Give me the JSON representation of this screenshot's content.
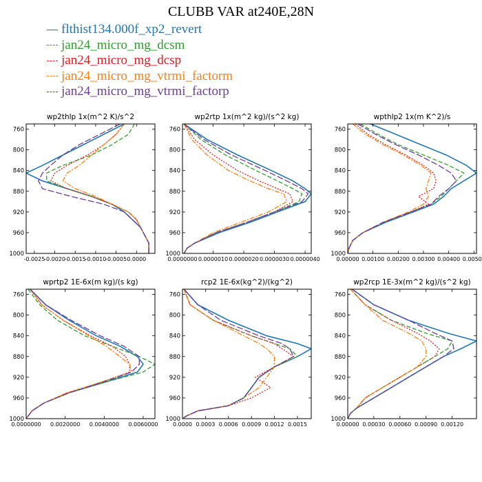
{
  "title": "CLUBB VAR at240E,28N",
  "legend": [
    {
      "label": "flthist134.000f_xp2_revert",
      "color": "#1f77b4",
      "dash": "solid"
    },
    {
      "label": "jan24_micro_mg_dcsm",
      "color": "#2ca02c",
      "dash": "dash"
    },
    {
      "label": "jan24_micro_mg_dcsp",
      "color": "#e41a1c",
      "dash": "dot"
    },
    {
      "label": "jan24_micro_mg_vtrmi_factorm",
      "color": "#ff7f0e",
      "dash": "dashdot"
    },
    {
      "label": "jan24_micro_mg_vtrmi_factorp",
      "color": "#6a3d9a",
      "dash": "longdash"
    }
  ],
  "chart_data": [
    {
      "type": "line",
      "title": "wp2thlp  1x(m^2 K)/s^2",
      "ylim": [
        1000,
        750
      ],
      "xlim": [
        -0.0027,
        0.00045
      ],
      "y_ticks": [
        760,
        800,
        840,
        880,
        920,
        960,
        1000
      ],
      "x_ticks": [
        "-0.0025",
        "-0.0020",
        "-0.0015",
        "-0.0010",
        "-0.0005",
        "0.0000"
      ],
      "x_tick_values": [
        -0.0025,
        -0.002,
        -0.0015,
        -0.001,
        -0.0005,
        0.0
      ],
      "y": [
        750,
        770,
        790,
        810,
        830,
        845,
        860,
        875,
        890,
        905,
        920,
        935,
        950,
        965,
        980,
        990,
        1000
      ],
      "series": [
        {
          "values": [
            -0.0003,
            -0.0008,
            -0.0013,
            -0.0018,
            -0.0023,
            -0.0027,
            -0.0023,
            -0.0017,
            -0.0011,
            -0.0006,
            -0.0003,
            -0.0001,
            0.0001,
            0.0002,
            0.0003,
            0.0003,
            0.0003
          ]
        },
        {
          "values": [
            -5e-05,
            -0.0002,
            -0.0006,
            -0.0011,
            -0.0018,
            -0.0022,
            -0.0022,
            -0.0017,
            -0.0011,
            -0.0006,
            -0.0002,
            0.0,
            0.0001,
            0.0002,
            0.0003,
            0.0003,
            0.0003
          ]
        },
        {
          "values": [
            -0.0003,
            -0.0005,
            -0.0008,
            -0.0012,
            -0.0017,
            -0.002,
            -0.0021,
            -0.0017,
            -0.0011,
            -0.0006,
            -0.0002,
            0.0,
            0.0001,
            0.0002,
            0.0003,
            0.0003,
            0.0003
          ]
        },
        {
          "values": [
            -0.0003,
            -0.0005,
            -0.0008,
            -0.0011,
            -0.0014,
            -0.0017,
            -0.0018,
            -0.0015,
            -0.001,
            -0.0006,
            -0.0002,
            0.0,
            0.0001,
            0.0002,
            0.0003,
            0.0003,
            0.0003
          ]
        },
        {
          "values": [
            -0.0004,
            -0.0009,
            -0.0014,
            -0.0018,
            -0.0021,
            -0.0023,
            -0.0024,
            -0.0023,
            -0.0016,
            -0.0008,
            -0.0003,
            -0.0001,
            0.0001,
            0.0002,
            0.0003,
            0.0003,
            0.0003
          ]
        }
      ]
    },
    {
      "type": "line",
      "title": "wp2rtp  1x(m^2 kg)/(s^2 kg)",
      "ylim": [
        1000,
        750
      ],
      "xlim": [
        0.0,
        4.2e-06
      ],
      "y_ticks": [
        760,
        800,
        840,
        880,
        920,
        960,
        1000
      ],
      "x_ticks": [
        "0.0000000",
        "0.0000010",
        "0.0000020",
        "0.0000030",
        "0.0000040"
      ],
      "x_tick_values": [
        0.0,
        1e-06,
        2e-06,
        3e-06,
        4e-06
      ],
      "y": [
        750,
        780,
        810,
        840,
        860,
        875,
        885,
        900,
        920,
        940,
        960,
        980,
        990,
        1000
      ],
      "series": [
        {
          "values": [
            5e-08,
            8e-07,
            1.8e-06,
            2.9e-06,
            3.6e-06,
            4e-06,
            4.2e-06,
            4e-06,
            3.1e-06,
            2.2e-06,
            1.2e-06,
            4e-07,
            1.5e-07,
            5e-08
          ]
        },
        {
          "values": [
            5e-08,
            6e-07,
            1.4e-06,
            2.4e-06,
            3.1e-06,
            3.6e-06,
            3.9e-06,
            3.8e-06,
            3e-06,
            2.1e-06,
            1.1e-06,
            4e-07,
            1.5e-07,
            5e-08
          ]
        },
        {
          "values": [
            5e-08,
            4e-07,
            1e-06,
            1.8e-06,
            2.5e-06,
            3.1e-06,
            3.5e-06,
            3.6e-06,
            3e-06,
            2.1e-06,
            1.1e-06,
            4e-07,
            1.5e-07,
            5e-08
          ]
        },
        {
          "values": [
            5e-08,
            3e-07,
            8e-07,
            1.5e-06,
            2.2e-06,
            2.8e-06,
            3.3e-06,
            3.4e-06,
            2.8e-06,
            1.9e-06,
            1e-06,
            4e-07,
            1.5e-07,
            5e-08
          ]
        },
        {
          "values": [
            5e-08,
            7e-07,
            1.6e-06,
            2.7e-06,
            3.4e-06,
            3.9e-06,
            4.1e-06,
            3.9e-06,
            3e-06,
            2.1e-06,
            1.1e-06,
            4e-07,
            1.5e-07,
            5e-08
          ]
        }
      ]
    },
    {
      "type": "line",
      "title": "wpthlp2  1x(m K^2)/s",
      "ylim": [
        1000,
        750
      ],
      "xlim": [
        0.0,
        0.0051
      ],
      "y_ticks": [
        760,
        800,
        840,
        880,
        920,
        960,
        1000
      ],
      "x_ticks": [
        "0.00000",
        "0.00100",
        "0.00200",
        "0.00300",
        "0.00400",
        "0.00500"
      ],
      "x_tick_values": [
        0.0,
        0.001,
        0.002,
        0.003,
        0.004,
        0.005
      ],
      "y": [
        750,
        770,
        790,
        810,
        830,
        845,
        860,
        875,
        890,
        905,
        920,
        940,
        960,
        975,
        990,
        1000
      ],
      "series": [
        {
          "values": [
            0.0009,
            0.0019,
            0.0029,
            0.0039,
            0.0047,
            0.0051,
            0.0046,
            0.0041,
            0.0038,
            0.0034,
            0.0026,
            0.0015,
            0.0006,
            0.0002,
            5e-05,
            0.0
          ]
        },
        {
          "values": [
            0.0005,
            0.0012,
            0.002,
            0.003,
            0.004,
            0.0046,
            0.0043,
            0.004,
            0.0037,
            0.0033,
            0.0025,
            0.0014,
            0.0006,
            0.0002,
            5e-05,
            0.0
          ]
        },
        {
          "values": [
            0.0003,
            0.0008,
            0.0015,
            0.0023,
            0.003,
            0.0034,
            0.0035,
            0.0034,
            0.0028,
            0.0032,
            0.0025,
            0.0014,
            0.0006,
            0.0002,
            5e-05,
            0.0
          ]
        },
        {
          "values": [
            0.0002,
            0.0007,
            0.0014,
            0.0022,
            0.0029,
            0.0033,
            0.0032,
            0.0031,
            0.0032,
            0.003,
            0.0024,
            0.0014,
            0.0006,
            0.0002,
            5e-05,
            0.0
          ]
        },
        {
          "values": [
            0.0004,
            0.0011,
            0.0019,
            0.0028,
            0.0036,
            0.0041,
            0.0043,
            0.004,
            0.0036,
            0.0033,
            0.0025,
            0.0014,
            0.0006,
            0.0002,
            5e-05,
            0.0
          ]
        }
      ]
    },
    {
      "type": "line",
      "title": "wprtp2  1E-6x(m kg)/(s kg)",
      "ylim": [
        1000,
        750
      ],
      "xlim": [
        0.0,
        0.0066
      ],
      "y_ticks": [
        760,
        800,
        840,
        880,
        920,
        960,
        1000
      ],
      "x_ticks": [
        "0.0000000",
        "0.0020000",
        "0.0040000",
        "0.0060000"
      ],
      "x_tick_values": [
        0.0,
        0.002,
        0.004,
        0.006
      ],
      "y": [
        750,
        780,
        810,
        840,
        860,
        880,
        895,
        910,
        930,
        950,
        970,
        985,
        995,
        1000
      ],
      "series": [
        {
          "values": [
            0.0002,
            0.001,
            0.0022,
            0.0036,
            0.0048,
            0.0057,
            0.006,
            0.0057,
            0.004,
            0.0022,
            0.0009,
            0.0003,
            0.0001,
            0.0
          ]
        },
        {
          "values": [
            0.0001,
            0.0007,
            0.0016,
            0.003,
            0.0044,
            0.0058,
            0.0066,
            0.006,
            0.004,
            0.0022,
            0.0009,
            0.0003,
            0.0001,
            0.0
          ]
        },
        {
          "values": [
            0.0002,
            0.0008,
            0.0019,
            0.0033,
            0.0044,
            0.0051,
            0.0053,
            0.0053,
            0.0038,
            0.0021,
            0.0009,
            0.0003,
            0.0001,
            0.0
          ]
        },
        {
          "values": [
            0.0002,
            0.0008,
            0.0019,
            0.0032,
            0.0041,
            0.0048,
            0.0053,
            0.0054,
            0.0038,
            0.0021,
            0.0009,
            0.0003,
            0.0001,
            0.0
          ]
        },
        {
          "values": [
            0.0002,
            0.001,
            0.0023,
            0.0038,
            0.005,
            0.0058,
            0.0058,
            0.0054,
            0.0039,
            0.0022,
            0.0009,
            0.0003,
            0.0001,
            0.0
          ]
        }
      ]
    },
    {
      "type": "line",
      "title": "rcp2  1E-6x(kg^2)/(kg^2)",
      "ylim": [
        1000,
        750
      ],
      "xlim": [
        0.0,
        0.00168
      ],
      "y_ticks": [
        760,
        800,
        840,
        880,
        920,
        960,
        1000
      ],
      "x_ticks": [
        "0.0000",
        "0.0003",
        "0.0006",
        "0.0009",
        "0.0012",
        "0.0015"
      ],
      "x_tick_values": [
        0.0,
        0.0003,
        0.0006,
        0.0009,
        0.0012,
        0.0015
      ],
      "y": [
        750,
        780,
        810,
        840,
        855,
        865,
        880,
        900,
        920,
        940,
        960,
        975,
        985,
        995,
        1000
      ],
      "series": [
        {
          "values": [
            2e-05,
            0.0002,
            0.0006,
            0.0011,
            0.0015,
            0.00168,
            0.0015,
            0.0012,
            0.001,
            0.0009,
            0.0008,
            0.0006,
            0.0002,
            5e-05,
            0.0
          ]
        },
        {
          "values": [
            2e-05,
            0.0001,
            0.0004,
            0.0009,
            0.0012,
            0.0014,
            0.0015,
            0.0012,
            0.001,
            0.0009,
            0.0008,
            0.0006,
            0.0002,
            5e-05,
            0.0
          ]
        },
        {
          "values": [
            2e-05,
            0.0001,
            0.0004,
            0.0009,
            0.0012,
            0.0013,
            0.00145,
            0.0012,
            0.00095,
            0.00115,
            0.0009,
            0.0006,
            0.0002,
            5e-05,
            0.0
          ]
        },
        {
          "values": [
            2e-05,
            0.0001,
            0.0004,
            0.0008,
            0.001,
            0.0011,
            0.0012,
            0.0012,
            0.0011,
            0.001,
            0.0008,
            0.0006,
            0.0002,
            5e-05,
            0.0
          ]
        },
        {
          "values": [
            2e-05,
            0.0002,
            0.0005,
            0.001,
            0.0013,
            0.0014,
            0.00145,
            0.0012,
            0.001,
            0.0009,
            0.0008,
            0.0006,
            0.0002,
            5e-05,
            0.0
          ]
        }
      ]
    },
    {
      "type": "line",
      "title": "wp2rcp  1E-3x(m^2 kg)/(s^2 kg)",
      "ylim": [
        1000,
        750
      ],
      "xlim": [
        0.0,
        0.00148
      ],
      "y_ticks": [
        760,
        800,
        840,
        880,
        920,
        960,
        1000
      ],
      "x_ticks": [
        "0.00000",
        "0.00030",
        "0.00060",
        "0.00090",
        "0.00120"
      ],
      "x_tick_values": [
        0.0,
        0.0003,
        0.0006,
        0.0009,
        0.0012
      ],
      "y": [
        750,
        780,
        810,
        835,
        850,
        865,
        880,
        900,
        920,
        940,
        960,
        980,
        990,
        1000
      ],
      "series": [
        {
          "values": [
            5e-05,
            0.0003,
            0.0007,
            0.00115,
            0.00148,
            0.0013,
            0.0011,
            0.0009,
            0.0007,
            0.0005,
            0.0003,
            0.0001,
            3e-05,
            0.0
          ]
        },
        {
          "values": [
            3e-05,
            0.0002,
            0.0005,
            0.0009,
            0.0012,
            0.00115,
            0.001,
            0.0008,
            0.0006,
            0.0004,
            0.0002,
            0.0001,
            3e-05,
            0.0
          ]
        },
        {
          "values": [
            3e-05,
            0.0002,
            0.0005,
            0.0008,
            0.00095,
            0.00105,
            0.001,
            0.0008,
            0.0006,
            0.0004,
            0.0002,
            0.0001,
            3e-05,
            0.0
          ]
        },
        {
          "values": [
            3e-05,
            0.0002,
            0.0004,
            0.0007,
            0.00085,
            0.0009,
            0.0009,
            0.0008,
            0.0006,
            0.0004,
            0.0002,
            0.0001,
            3e-05,
            0.0
          ]
        },
        {
          "values": [
            5e-05,
            0.0003,
            0.0007,
            0.001,
            0.0012,
            0.00122,
            0.0011,
            0.0009,
            0.0007,
            0.0005,
            0.0003,
            0.0001,
            3e-05,
            0.0
          ]
        }
      ]
    }
  ]
}
